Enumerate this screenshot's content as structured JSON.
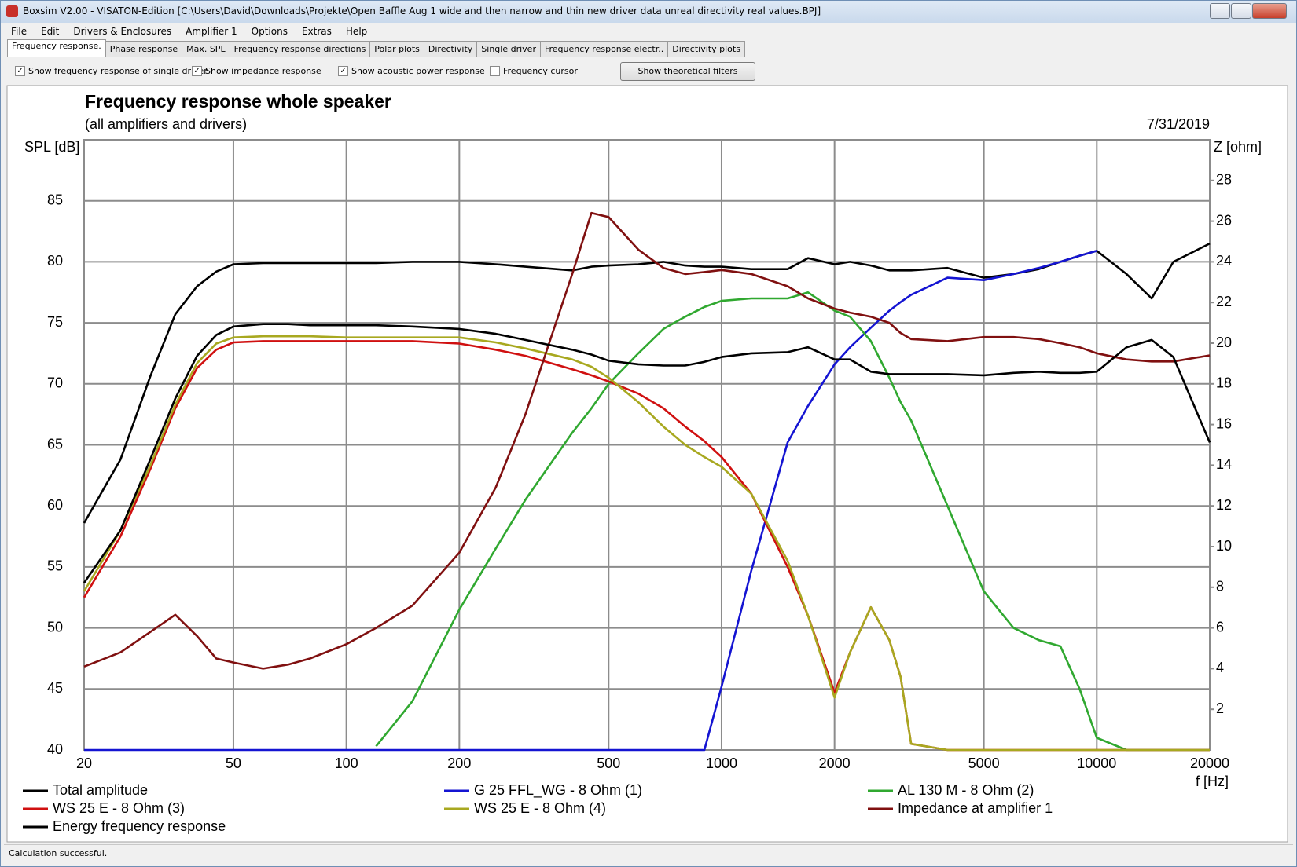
{
  "window": {
    "title": "Boxsim V2.00 - VISATON-Edition [C:\\Users\\David\\Downloads\\Projekte\\Open Baffle Aug 1 wide and then narrow and thin new driver data unreal directivity real values.BPJ]"
  },
  "menu": [
    "File",
    "Edit",
    "Drivers & Enclosures",
    "Amplifier 1",
    "Options",
    "Extras",
    "Help"
  ],
  "tabs": [
    "Frequency response.",
    "Phase response",
    "Max. SPL",
    "Frequency response directions",
    "Polar plots",
    "Directivity",
    "Single driver",
    "Frequency response electr..",
    "Directivity plots"
  ],
  "options": [
    {
      "label": "Show frequency response of single driver",
      "checked": true
    },
    {
      "label": "Show impedance response",
      "checked": true
    },
    {
      "label": "Show acoustic power response",
      "checked": true
    },
    {
      "label": "Frequency cursor",
      "checked": false
    }
  ],
  "button": "Show theoretical filters",
  "status": "Calculation successful.",
  "chart_data": {
    "type": "line",
    "title": "Frequency response whole speaker",
    "subtitle": "(all amplifiers and drivers)",
    "date": "7/31/2019",
    "ylabel": "SPL [dB]",
    "y2label": "Z [ohm]",
    "xlabel": "f [Hz]",
    "xscale": "log",
    "grid": true,
    "xlim": [
      20,
      20000
    ],
    "xticks": [
      20,
      50,
      100,
      200,
      500,
      1000,
      2000,
      5000,
      10000,
      20000
    ],
    "ylim": [
      40,
      90
    ],
    "yticks": [
      40,
      45,
      50,
      55,
      60,
      65,
      70,
      75,
      80,
      85
    ],
    "y2lim": [
      0,
      30
    ],
    "y2ticks": [
      2,
      4,
      6,
      8,
      10,
      12,
      14,
      16,
      18,
      20,
      22,
      24,
      26,
      28
    ],
    "x": [
      20,
      25,
      30,
      35,
      40,
      45,
      50,
      60,
      70,
      80,
      100,
      120,
      150,
      200,
      250,
      300,
      400,
      450,
      500,
      600,
      700,
      800,
      900,
      1000,
      1200,
      1500,
      1700,
      2000,
      2200,
      2500,
      2800,
      3000,
      3200,
      4000,
      5000,
      6000,
      7000,
      8000,
      9000,
      10000,
      12000,
      14000,
      16000,
      20000
    ],
    "series": [
      {
        "name": "Total amplitude",
        "color": "#000000",
        "values": [
          58.6,
          63.8,
          70.6,
          75.7,
          78,
          79.2,
          79.8,
          79.9,
          79.9,
          79.9,
          79.9,
          79.9,
          80,
          80,
          79.8,
          79.6,
          79.3,
          79.6,
          79.7,
          79.8,
          80,
          79.7,
          79.6,
          79.6,
          79.4,
          79.4,
          80.3,
          79.8,
          80,
          79.7,
          79.3,
          79.3,
          79.3,
          79.5,
          78.7,
          79,
          79.4,
          80,
          80.5,
          80.9,
          79,
          77,
          80,
          81.5
        ]
      },
      {
        "name": "G 25 FFL_WG - 8 Ohm (1)",
        "color": "#1414d2",
        "values": [
          40,
          40,
          40,
          40,
          40,
          40,
          40,
          40,
          40,
          40,
          40,
          40,
          40,
          40,
          40,
          40,
          40,
          40,
          40,
          40,
          40,
          40,
          40,
          45.2,
          54.7,
          65.2,
          68.2,
          71.6,
          73,
          74.6,
          76,
          76.7,
          77.3,
          78.7,
          78.5,
          79,
          79.5,
          80,
          80.5,
          80.9,
          null,
          null,
          null,
          null
        ]
      },
      {
        "name": "AL 130 M - 8 Ohm (2)",
        "color": "#30a830",
        "values": [
          null,
          null,
          null,
          null,
          null,
          null,
          null,
          null,
          null,
          null,
          null,
          40.3,
          44,
          51.5,
          56.5,
          60.5,
          66,
          68,
          70,
          72.5,
          74.5,
          75.5,
          76.3,
          76.8,
          77,
          77,
          77.5,
          76,
          75.5,
          73.5,
          70.5,
          68.5,
          67,
          60,
          53,
          50,
          49,
          48.5,
          45,
          41,
          40,
          40,
          40,
          40
        ]
      },
      {
        "name": "WS 25 E - 8 Ohm (3)",
        "color": "#d01010",
        "values": [
          52.5,
          57.5,
          63,
          68,
          71.3,
          72.8,
          73.4,
          73.5,
          73.5,
          73.5,
          73.5,
          73.5,
          73.5,
          73.3,
          72.8,
          72.3,
          71.2,
          70.7,
          70.2,
          69.2,
          68,
          66.5,
          65.3,
          64,
          61,
          55,
          51,
          44.7,
          48,
          51.7,
          49,
          46,
          40.5,
          40,
          40,
          40,
          40,
          40,
          40,
          40,
          40,
          40,
          40,
          40
        ]
      },
      {
        "name": "WS 25 E - 8 Ohm (4)",
        "color": "#a8a820",
        "values": [
          53,
          58,
          63.3,
          68.3,
          71.7,
          73.3,
          73.8,
          73.9,
          73.9,
          73.9,
          73.8,
          73.8,
          73.8,
          73.8,
          73.4,
          72.9,
          72,
          71.4,
          70.5,
          68.5,
          66.5,
          65,
          64,
          63.2,
          61,
          55.5,
          51,
          44.3,
          48,
          51.7,
          49,
          46,
          40.5,
          40,
          40,
          40,
          40,
          40,
          40,
          40,
          40,
          40,
          40,
          40
        ]
      },
      {
        "name": "Impedance at amplifier 1",
        "color": "#801010",
        "axis": "y2",
        "values": [
          4.1,
          4.8,
          5.8,
          6.65,
          5.6,
          4.5,
          4.3,
          4.0,
          4.2,
          4.5,
          5.2,
          6.0,
          7.1,
          9.7,
          12.9,
          16.5,
          23.4,
          26.4,
          26.2,
          24.6,
          23.7,
          23.4,
          23.5,
          23.6,
          23.4,
          22.8,
          22.2,
          21.7,
          21.5,
          21.3,
          21,
          20.5,
          20.2,
          20.1,
          20.3,
          20.3,
          20.2,
          20,
          19.8,
          19.5,
          19.2,
          19.1,
          19.1,
          19.4
        ]
      },
      {
        "name": "Energy frequency response",
        "color": "#000000",
        "values": [
          53.7,
          58,
          63.8,
          68.8,
          72.3,
          74,
          74.7,
          74.9,
          74.9,
          74.8,
          74.8,
          74.8,
          74.7,
          74.5,
          74.1,
          73.6,
          72.8,
          72.4,
          71.9,
          71.6,
          71.5,
          71.5,
          71.8,
          72.2,
          72.5,
          72.6,
          73,
          72,
          72,
          71,
          70.8,
          70.8,
          70.8,
          70.8,
          70.7,
          70.9,
          71,
          70.9,
          70.9,
          71,
          73,
          73.6,
          72.2,
          65.2
        ]
      }
    ]
  }
}
